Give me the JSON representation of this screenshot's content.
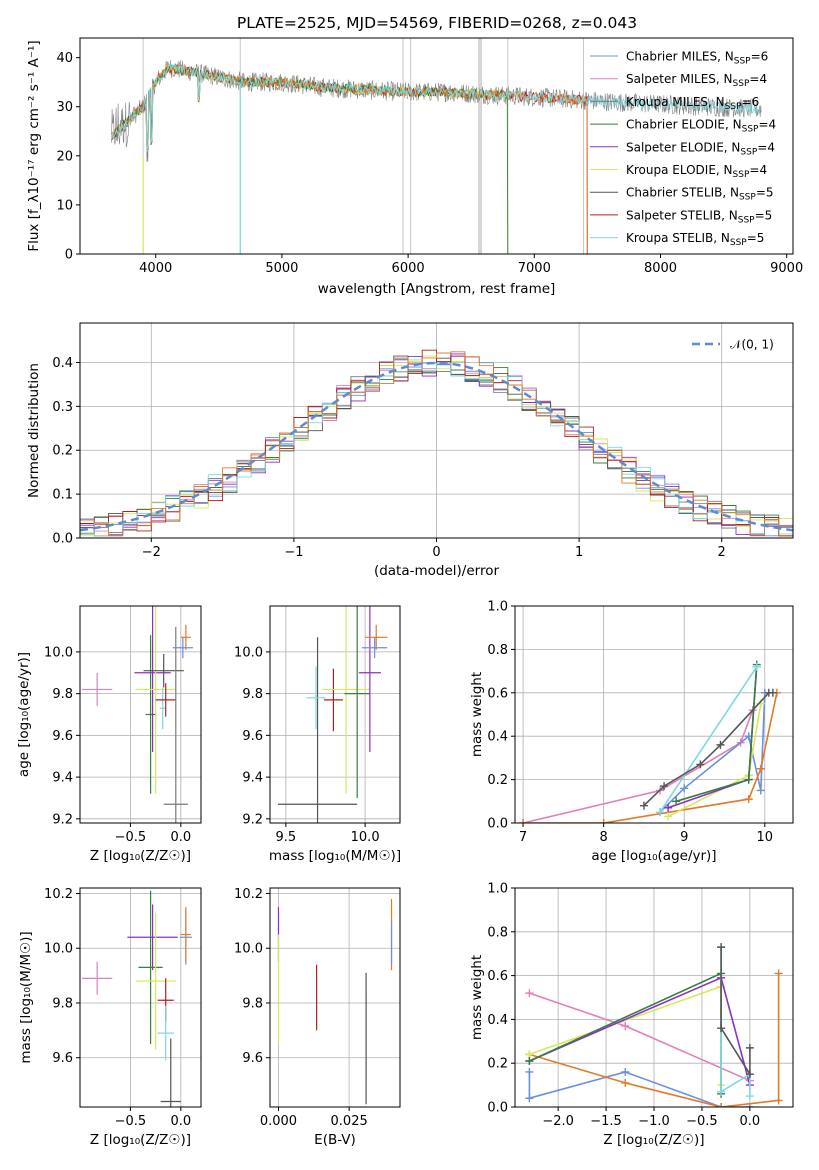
{
  "figure_title": "PLATE=2525, MJD=54569, FIBERID=0268, z=0.043",
  "colors": {
    "chabrier_miles": "#6b8fe0",
    "salpeter_miles": "#e080b8",
    "kroupa_miles": "#7a7a7a",
    "chabrier_elodie": "#3a7d44",
    "salpeter_elodie": "#8b2fc9",
    "kroupa_elodie": "#d4ea5a",
    "chabrier_stelib": "#555555",
    "salpeter_stelib": "#b02020",
    "kroupa_stelib": "#7ed8e0",
    "orange": "#e07b2a",
    "data_grey": "#808080",
    "normal_curve": "#5b8bd0"
  },
  "chart_data": [
    {
      "id": "spectrum",
      "type": "line",
      "xlabel": "wavelength [Angstrom, rest frame]",
      "ylabel": "Flux [f_λ10⁻¹⁷ erg cm⁻² s⁻¹ A⁻¹]",
      "xlim": [
        3400,
        9050
      ],
      "ylim": [
        0,
        44
      ],
      "xticks": [
        "4000",
        "5000",
        "6000",
        "7000",
        "8000",
        "9000"
      ],
      "yticks": [
        "0",
        "10",
        "20",
        "30",
        "40"
      ],
      "grid": false,
      "legend_position": "top-right",
      "continuum_wavelength": [
        3650,
        3900,
        4000,
        4100,
        4300,
        4500,
        4700,
        5000,
        5300,
        5600,
        6000,
        6300,
        6600,
        7000,
        7300,
        7600,
        8000,
        8400,
        8800
      ],
      "continuum_flux": [
        24,
        30,
        35,
        38,
        37,
        36,
        35,
        35,
        34,
        33.5,
        33,
        33,
        32.5,
        32,
        31.5,
        31,
        30.5,
        30,
        29.5
      ],
      "legend": [
        {
          "label": "Chabrier MILES, N",
          "sub": "SSP",
          "eq": "=6",
          "color_key": "chabrier_miles"
        },
        {
          "label": "Salpeter MILES, N",
          "sub": "SSP",
          "eq": "=4",
          "color_key": "salpeter_miles"
        },
        {
          "label": "Kroupa MILES, N",
          "sub": "SSP",
          "eq": "=6",
          "color_key": "kroupa_miles"
        },
        {
          "label": "Chabrier ELODIE, N",
          "sub": "SSP",
          "eq": "=4",
          "color_key": "chabrier_elodie"
        },
        {
          "label": "Salpeter ELODIE, N",
          "sub": "SSP",
          "eq": "=4",
          "color_key": "salpeter_elodie"
        },
        {
          "label": "Kroupa ELODIE, N",
          "sub": "SSP",
          "eq": "=4",
          "color_key": "kroupa_elodie"
        },
        {
          "label": "Chabrier STELIB, N",
          "sub": "SSP",
          "eq": "=5",
          "color_key": "chabrier_stelib"
        },
        {
          "label": "Salpeter STELIB, N",
          "sub": "SSP",
          "eq": "=5",
          "color_key": "salpeter_stelib"
        },
        {
          "label": "Kroupa STELIB, N",
          "sub": "SSP",
          "eq": "=5",
          "color_key": "kroupa_stelib"
        }
      ]
    },
    {
      "id": "residual_hist",
      "type": "histogram",
      "xlabel": "(data-model)/error",
      "ylabel": "Normed distribution",
      "xlim": [
        -2.5,
        2.5
      ],
      "ylim": [
        0,
        0.49
      ],
      "xticks": [
        "−2",
        "−1",
        "0",
        "1",
        "2"
      ],
      "yticks": [
        "0.0",
        "0.1",
        "0.2",
        "0.3",
        "0.4"
      ],
      "grid": true,
      "legend_position": "top-right",
      "legend": [
        {
          "label": "𝒩(0, 1)",
          "color_key": "normal_curve",
          "style": "dashed"
        }
      ],
      "bin_width": 0.1
    },
    {
      "id": "age_vs_Z",
      "type": "errorbar",
      "xlabel": "Z [log₁₀(Z/Z☉)]",
      "ylabel": "age  [log₁₀(age/yr)]",
      "xlim": [
        -1.0,
        0.2
      ],
      "ylim": [
        9.18,
        10.22
      ],
      "xticks": [
        "−0.5",
        "0.0"
      ],
      "yticks": [
        "9.2",
        "9.4",
        "9.6",
        "9.8",
        "10.0"
      ],
      "grid": true,
      "points": [
        {
          "series": "salpeter_miles",
          "x": -0.83,
          "y": 9.82,
          "xerr": 0.15,
          "yerr": 0.08
        },
        {
          "series": "chabrier_elodie",
          "x": -0.3,
          "y": 9.7,
          "xerr": 0.05,
          "yerr": 0.38
        },
        {
          "series": "salpeter_elodie",
          "x": -0.28,
          "y": 9.9,
          "xerr": 0.18,
          "yerr": 0.38
        },
        {
          "series": "kroupa_elodie",
          "x": -0.25,
          "y": 9.82,
          "xerr": 0.2,
          "yerr": 0.5
        },
        {
          "series": "kroupa_stelib",
          "x": -0.18,
          "y": 9.73,
          "xerr": 0.03,
          "yerr": 0.1
        },
        {
          "series": "salpeter_stelib",
          "x": -0.15,
          "y": 9.77,
          "xerr": 0.1,
          "yerr": 0.08
        },
        {
          "series": "chabrier_stelib",
          "x": -0.17,
          "y": 9.91,
          "xerr": 0.2,
          "yerr": 0.08
        },
        {
          "series": "kroupa_miles",
          "x": -0.05,
          "y": 9.27,
          "xerr": 0.12,
          "yerr": 0.85
        },
        {
          "series": "chabrier_miles",
          "x": 0.02,
          "y": 10.02,
          "xerr": 0.1,
          "yerr": 0.05
        },
        {
          "series": "orange",
          "x": 0.05,
          "y": 10.07,
          "xerr": 0.05,
          "yerr": 0.06
        }
      ]
    },
    {
      "id": "age_vs_mass",
      "type": "errorbar",
      "xlabel": "mass [log₁₀(M/M☉)]",
      "ylabel": "",
      "xlim": [
        9.4,
        10.22
      ],
      "ylim": [
        9.18,
        10.22
      ],
      "xticks": [
        "9.5",
        "10.0"
      ],
      "yticks": [
        "9.2",
        "9.4",
        "9.6",
        "9.8",
        "10.0"
      ],
      "grid": true,
      "points": [
        {
          "series": "chabrier_stelib",
          "x": 9.7,
          "y": 9.27,
          "xerr": 0.25,
          "yerr": 0.8
        },
        {
          "series": "kroupa_stelib",
          "x": 9.69,
          "y": 9.78,
          "xerr": 0.06,
          "yerr": 0.15
        },
        {
          "series": "salpeter_stelib",
          "x": 9.8,
          "y": 9.77,
          "xerr": 0.06,
          "yerr": 0.15
        },
        {
          "series": "kroupa_elodie",
          "x": 9.88,
          "y": 9.82,
          "xerr": 0.15,
          "yerr": 0.5
        },
        {
          "series": "chabrier_elodie",
          "x": 9.95,
          "y": 9.8,
          "xerr": 0.08,
          "yerr": 0.5
        },
        {
          "series": "salpeter_elodie",
          "x": 10.03,
          "y": 9.9,
          "xerr": 0.07,
          "yerr": 0.38
        },
        {
          "series": "chabrier_miles",
          "x": 10.06,
          "y": 10.02,
          "xerr": 0.08,
          "yerr": 0.05
        },
        {
          "series": "orange",
          "x": 10.07,
          "y": 10.07,
          "xerr": 0.07,
          "yerr": 0.06
        }
      ]
    },
    {
      "id": "massweight_vs_age",
      "type": "line",
      "xlabel": "age  [log₁₀(age/yr)]",
      "ylabel": "mass weight",
      "xlim": [
        6.9,
        10.35
      ],
      "ylim": [
        0,
        1.0
      ],
      "xticks": [
        "7",
        "8",
        "9",
        "10"
      ],
      "yticks": [
        "0.0",
        "0.2",
        "0.4",
        "0.6",
        "0.8",
        "1.0"
      ],
      "grid": true,
      "series": [
        {
          "name": "salpeter_miles",
          "x": [
            7.0,
            8.7,
            9.7,
            9.85
          ],
          "y": [
            0.0,
            0.15,
            0.37,
            0.52
          ]
        },
        {
          "name": "chabrier_miles",
          "x": [
            8.7,
            9.0,
            9.8,
            9.95,
            10.0
          ],
          "y": [
            0.05,
            0.16,
            0.4,
            0.15,
            0.6
          ]
        },
        {
          "name": "orange",
          "x": [
            7.0,
            8.0,
            9.8,
            9.95,
            10.15
          ],
          "y": [
            0.0,
            0.0,
            0.11,
            0.25,
            0.6
          ]
        },
        {
          "name": "kroupa_elodie",
          "x": [
            8.8,
            9.8,
            9.95
          ],
          "y": [
            0.03,
            0.22,
            0.55
          ]
        },
        {
          "name": "salpeter_elodie",
          "x": [
            8.8,
            9.8,
            9.9
          ],
          "y": [
            0.07,
            0.2,
            0.72
          ]
        },
        {
          "name": "chabrier_elodie",
          "x": [
            8.9,
            9.8,
            9.9
          ],
          "y": [
            0.1,
            0.2,
            0.73
          ]
        },
        {
          "name": "kroupa_stelib",
          "x": [
            8.7,
            9.9
          ],
          "y": [
            0.05,
            0.72
          ]
        },
        {
          "name": "chabrier_stelib",
          "x": [
            8.5,
            8.75,
            9.2,
            9.45,
            10.05,
            10.1
          ],
          "y": [
            0.08,
            0.17,
            0.27,
            0.36,
            0.6,
            0.6
          ]
        }
      ]
    },
    {
      "id": "mass_vs_Z",
      "type": "errorbar",
      "xlabel": "Z [log₁₀(Z/Z☉)]",
      "ylabel": "mass [log₁₀(M/M☉)]",
      "xlim": [
        -1.0,
        0.2
      ],
      "ylim": [
        9.42,
        10.22
      ],
      "xticks": [
        "−0.5",
        "0.0"
      ],
      "yticks": [
        "9.6",
        "9.8",
        "10.0",
        "10.2"
      ],
      "grid": true,
      "points": [
        {
          "series": "salpeter_miles",
          "x": -0.83,
          "y": 9.89,
          "xerr": 0.15,
          "yerr": 0.06
        },
        {
          "series": "salpeter_elodie",
          "x": -0.28,
          "y": 10.04,
          "xerr": 0.25,
          "yerr": 0.12
        },
        {
          "series": "chabrier_elodie",
          "x": -0.3,
          "y": 9.93,
          "xerr": 0.12,
          "yerr": 0.28
        },
        {
          "series": "kroupa_elodie",
          "x": -0.25,
          "y": 9.88,
          "xerr": 0.2,
          "yerr": 0.25
        },
        {
          "series": "salpeter_stelib",
          "x": -0.15,
          "y": 9.81,
          "xerr": 0.08,
          "yerr": 0.08
        },
        {
          "series": "kroupa_stelib",
          "x": -0.15,
          "y": 9.69,
          "xerr": 0.08,
          "yerr": 0.1
        },
        {
          "series": "chabrier_stelib",
          "x": -0.1,
          "y": 9.44,
          "xerr": 0.1,
          "yerr": 0.23
        },
        {
          "series": "chabrier_miles",
          "x": 0.05,
          "y": 10.04,
          "xerr": 0.06,
          "yerr": 0.1
        },
        {
          "series": "orange",
          "x": 0.05,
          "y": 10.05,
          "xerr": 0.05,
          "yerr": 0.1
        }
      ]
    },
    {
      "id": "mass_vs_ebv",
      "type": "errorbar",
      "xlabel": "E(B-V)",
      "ylabel": "",
      "xlim": [
        -0.003,
        0.043
      ],
      "ylim": [
        9.42,
        10.22
      ],
      "xticks": [
        "0.000",
        "0.025"
      ],
      "yticks": [
        "9.6",
        "9.8",
        "10.0",
        "10.2"
      ],
      "grid": true,
      "points": [
        {
          "series": "salpeter_elodie",
          "x": 0.0,
          "y": 10.05,
          "xerr": 0,
          "yerr": 0.1
        },
        {
          "series": "kroupa_elodie",
          "x": 0.0,
          "y": 9.85,
          "xerr": 0,
          "yerr": 0.2
        },
        {
          "series": "salpeter_stelib",
          "x": 0.0135,
          "y": 9.82,
          "xerr": 0,
          "yerr": 0.12
        },
        {
          "series": "kroupa_stelib",
          "x": 0.031,
          "y": 9.68,
          "xerr": 0,
          "yerr": 0.15
        },
        {
          "series": "chabrier_stelib",
          "x": 0.031,
          "y": 9.67,
          "xerr": 0,
          "yerr": 0.24
        },
        {
          "series": "orange",
          "x": 0.04,
          "y": 10.05,
          "xerr": 0,
          "yerr": 0.13
        },
        {
          "series": "chabrier_miles",
          "x": 0.04,
          "y": 10.02,
          "xerr": 0,
          "yerr": 0.08
        }
      ]
    },
    {
      "id": "massweight_vs_Z",
      "type": "line",
      "xlabel": "Z [log₁₀(Z/Z☉)]",
      "ylabel": "mass weight",
      "xlim": [
        -2.45,
        0.45
      ],
      "ylim": [
        0,
        1.0
      ],
      "xticks": [
        "−2.0",
        "−1.5",
        "−1.0",
        "−0.5",
        "0.0"
      ],
      "yticks": [
        "0.0",
        "0.2",
        "0.4",
        "0.6",
        "0.8",
        "1.0"
      ],
      "grid": true,
      "series": [
        {
          "name": "salpeter_miles",
          "x": [
            -2.3,
            -1.3,
            0.0
          ],
          "y": [
            0.52,
            0.37,
            0.12
          ]
        },
        {
          "name": "chabrier_miles",
          "x": [
            -2.3,
            -2.3,
            -1.3,
            -0.3,
            0.0
          ],
          "y": [
            0.16,
            0.04,
            0.16,
            0.0,
            0.0
          ]
        },
        {
          "name": "orange",
          "x": [
            -2.3,
            -1.3,
            -0.3,
            0.3,
            0.3
          ],
          "y": [
            0.24,
            0.11,
            0.0,
            0.03,
            0.61
          ]
        },
        {
          "name": "kroupa_elodie",
          "x": [
            -2.3,
            -0.3,
            -0.3
          ],
          "y": [
            0.24,
            0.55,
            0.1
          ]
        },
        {
          "name": "salpeter_elodie",
          "x": [
            -2.3,
            -0.3,
            0.0
          ],
          "y": [
            0.21,
            0.59,
            0.1
          ]
        },
        {
          "name": "chabrier_elodie",
          "x": [
            -2.3,
            -0.3,
            -0.3
          ],
          "y": [
            0.21,
            0.61,
            0.06
          ]
        },
        {
          "name": "kroupa_stelib",
          "x": [
            -0.3,
            -0.3,
            0.0,
            0.0
          ],
          "y": [
            0.73,
            0.07,
            0.15,
            0.05
          ]
        },
        {
          "name": "chabrier_stelib",
          "x": [
            -0.3,
            -0.3,
            0.0,
            0.0
          ],
          "y": [
            0.73,
            0.36,
            0.15,
            0.27
          ]
        }
      ]
    }
  ]
}
